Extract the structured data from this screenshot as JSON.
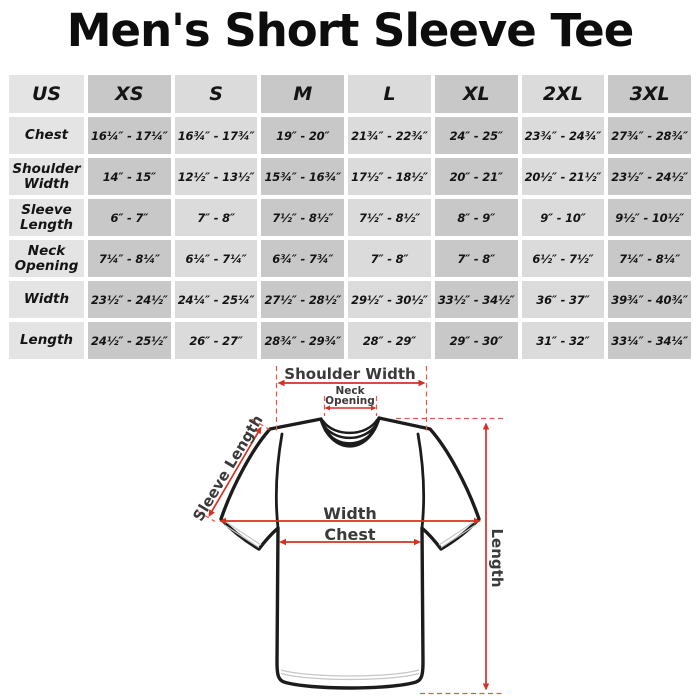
{
  "title": "Men's Short Sleeve Tee",
  "size_table": {
    "columns": [
      "US",
      "XS",
      "S",
      "M",
      "L",
      "XL",
      "2XL",
      "3XL"
    ],
    "rows": [
      {
        "label": "Chest",
        "values": [
          "16¼″ - 17¼″",
          "16¾″ - 17¾″",
          "19″ - 20″",
          "21¾″ - 22¾″",
          "24″ - 25″",
          "23¾″ - 24¾″",
          "27¾″ - 28¾″"
        ]
      },
      {
        "label": "Shoulder Width",
        "values": [
          "14″ - 15″",
          "12½″ - 13½″",
          "15¾″ - 16¾″",
          "17½″ - 18½″",
          "20″ - 21″",
          "20½″ - 21½″",
          "23½″ - 24½″"
        ]
      },
      {
        "label": "Sleeve Length",
        "values": [
          "6″ - 7″",
          "7″ - 8″",
          "7½″ - 8½″",
          "7½″ - 8½″",
          "8″ - 9″",
          "9″ - 10″",
          "9½″ - 10½″"
        ]
      },
      {
        "label": "Neck Opening",
        "values": [
          "7¼″ - 8¼″",
          "6¼″ - 7¼″",
          "6¾″ - 7¾″",
          "7″ - 8″",
          "7″ - 8″",
          "6½″ - 7½″",
          "7¼″ - 8¼″"
        ]
      },
      {
        "label": "Width",
        "values": [
          "23½″ - 24½″",
          "24¼″ - 25¼″",
          "27½″ - 28½″",
          "29½″ - 30½″",
          "33½″ - 34½″",
          "36″ - 37″",
          "39¾″ - 40¾″"
        ]
      },
      {
        "label": "Length",
        "values": [
          "24½″ - 25½″",
          "26″ - 27″",
          "28¾″ - 29¾″",
          "28″ - 29″",
          "29″ - 30″",
          "31″ - 32″",
          "33¼″ - 34¼″"
        ]
      }
    ]
  },
  "diagram": {
    "shoulder_width_label": "Shoulder Width",
    "neck_opening_label": "Neck Opening",
    "sleeve_length_label": "Sleeve Length",
    "width_label": "Width",
    "chest_label": "Chest",
    "length_label": "Length"
  },
  "colors": {
    "accent_red": "#d92f23",
    "dash_red": "#e2574b",
    "outline_black": "#1c1c1c",
    "table_label_column": "#e4e4e4",
    "table_dark_column": "#c8c8c8",
    "table_light_column": "#dbdbdb"
  }
}
